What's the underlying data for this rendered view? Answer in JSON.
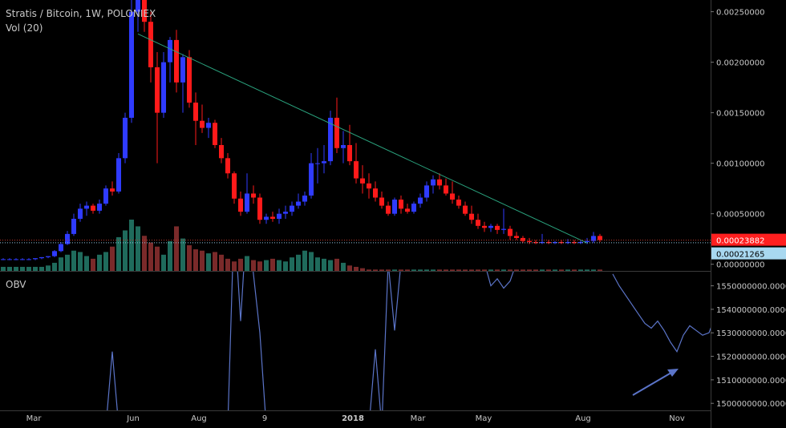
{
  "header": {
    "title": "Stratis / Bitcoin, 1W, POLONIEX",
    "vol_label": "Vol (20)"
  },
  "obv_label": "OBV",
  "colors": {
    "background": "#000000",
    "up_candle": "#2f3bff",
    "down_candle": "#ff1a1a",
    "volume_up": "#1f6b5c",
    "volume_down": "#7a2a2a",
    "trendline": "#2aa37e",
    "obv_line": "#5b74c8",
    "arrow": "#5b74c8",
    "price_tag_red": "#ff1f1f",
    "price_tag_blue": "#a8d8f0",
    "axis_text": "#c8c8c8"
  },
  "chart_data": [
    {
      "type": "candlestick",
      "title": "Stratis / Bitcoin, 1W, POLONIEX",
      "x_ticks": [
        "Mar",
        "Jun",
        "Aug",
        "9",
        "2018",
        "Mar",
        "May",
        "Aug",
        "Nov"
      ],
      "x_tick_bold": "2018",
      "y_ticks": [
        "0.00250000",
        "0.00200000",
        "0.00150000",
        "0.00100000",
        "0.00050000",
        "0.00000000"
      ],
      "ylim": [
        -5e-05,
        0.0026
      ],
      "last_price_tag": "0.00023882",
      "second_price_tag": "0.00021265",
      "ohlc": [
        [
          5e-05,
          6e-05,
          4e-05,
          5e-05
        ],
        [
          5e-05,
          6e-05,
          4e-05,
          5e-05
        ],
        [
          5e-05,
          6e-05,
          4e-05,
          5e-05
        ],
        [
          5e-05,
          6e-05,
          4e-05,
          5e-05
        ],
        [
          5e-05,
          6e-05,
          4e-05,
          5e-05
        ],
        [
          5e-05,
          6e-05,
          4e-05,
          6e-05
        ],
        [
          6e-05,
          7e-05,
          5e-05,
          7e-05
        ],
        [
          7e-05,
          8e-05,
          6e-05,
          8e-05
        ],
        [
          8e-05,
          0.00014,
          7e-05,
          0.00013
        ],
        [
          0.00013,
          0.00022,
          0.00012,
          0.0002
        ],
        [
          0.0002,
          0.00033,
          0.00019,
          0.0003
        ],
        [
          0.0003,
          0.0005,
          0.00028,
          0.00045
        ],
        [
          0.00045,
          0.0006,
          0.00042,
          0.00055
        ],
        [
          0.00055,
          0.00062,
          0.00048,
          0.00058
        ],
        [
          0.00058,
          0.0006,
          0.0005,
          0.00053
        ],
        [
          0.00053,
          0.00064,
          0.0005,
          0.0006
        ],
        [
          0.0006,
          0.00078,
          0.00058,
          0.00075
        ],
        [
          0.00075,
          0.00082,
          0.00068,
          0.00072
        ],
        [
          0.00072,
          0.0011,
          0.0007,
          0.00105
        ],
        [
          0.00105,
          0.0015,
          0.001,
          0.00145
        ],
        [
          0.00145,
          0.00265,
          0.0014,
          0.0025
        ],
        [
          0.0025,
          0.0027,
          0.0023,
          0.00262
        ],
        [
          0.00262,
          0.00268,
          0.0023,
          0.0024
        ],
        [
          0.0024,
          0.0025,
          0.0018,
          0.00195
        ],
        [
          0.00195,
          0.0021,
          0.001,
          0.0015
        ],
        [
          0.0015,
          0.0021,
          0.00145,
          0.002
        ],
        [
          0.002,
          0.00225,
          0.0018,
          0.00222
        ],
        [
          0.00222,
          0.00232,
          0.0017,
          0.0018
        ],
        [
          0.0018,
          0.00208,
          0.0015,
          0.00205
        ],
        [
          0.00205,
          0.00212,
          0.00155,
          0.0016
        ],
        [
          0.0016,
          0.0017,
          0.00118,
          0.00142
        ],
        [
          0.00142,
          0.00158,
          0.0013,
          0.00135
        ],
        [
          0.00135,
          0.00145,
          0.00125,
          0.0014
        ],
        [
          0.0014,
          0.00143,
          0.00115,
          0.00118
        ],
        [
          0.00118,
          0.00125,
          0.001,
          0.00105
        ],
        [
          0.00105,
          0.0011,
          0.00085,
          0.0009
        ],
        [
          0.0009,
          0.00092,
          0.0006,
          0.00065
        ],
        [
          0.00065,
          0.00072,
          0.00048,
          0.00052
        ],
        [
          0.00052,
          0.0009,
          0.0005,
          0.0007
        ],
        [
          0.0007,
          0.00078,
          0.0006,
          0.00066
        ],
        [
          0.00066,
          0.0007,
          0.0004,
          0.00044
        ],
        [
          0.00044,
          0.0005,
          0.0004,
          0.00047
        ],
        [
          0.00047,
          0.00052,
          0.00042,
          0.00045
        ],
        [
          0.00045,
          0.00055,
          0.0004,
          0.0005
        ],
        [
          0.0005,
          0.00058,
          0.00045,
          0.00052
        ],
        [
          0.00052,
          0.00062,
          0.00048,
          0.00058
        ],
        [
          0.00058,
          0.0007,
          0.00055,
          0.00062
        ],
        [
          0.00062,
          0.00072,
          0.00058,
          0.00068
        ],
        [
          0.00068,
          0.0011,
          0.00065,
          0.001
        ],
        [
          0.001,
          0.00115,
          0.0008,
          0.001
        ],
        [
          0.001,
          0.00118,
          0.0009,
          0.00102
        ],
        [
          0.00102,
          0.00152,
          0.00098,
          0.00145
        ],
        [
          0.00145,
          0.00165,
          0.0011,
          0.00115
        ],
        [
          0.00115,
          0.00132,
          0.001,
          0.00118
        ],
        [
          0.00118,
          0.00138,
          0.00098,
          0.00102
        ],
        [
          0.00102,
          0.0012,
          0.0008,
          0.00085
        ],
        [
          0.00085,
          0.00098,
          0.0007,
          0.0008
        ],
        [
          0.0008,
          0.0009,
          0.00065,
          0.00075
        ],
        [
          0.00075,
          0.00082,
          0.00062,
          0.00066
        ],
        [
          0.00066,
          0.00072,
          0.00055,
          0.00058
        ],
        [
          0.00058,
          0.00062,
          0.00048,
          0.0005
        ],
        [
          0.0005,
          0.00066,
          0.00048,
          0.00064
        ],
        [
          0.00064,
          0.00068,
          0.0005,
          0.00055
        ],
        [
          0.00055,
          0.0006,
          0.0005,
          0.00052
        ],
        [
          0.00052,
          0.00062,
          0.0005,
          0.0006
        ],
        [
          0.0006,
          0.0007,
          0.00056,
          0.00066
        ],
        [
          0.00066,
          0.00082,
          0.00062,
          0.00078
        ],
        [
          0.00078,
          0.00088,
          0.0007,
          0.00084
        ],
        [
          0.00084,
          0.0009,
          0.00074,
          0.00078
        ],
        [
          0.00078,
          0.00085,
          0.00068,
          0.0007
        ],
        [
          0.0007,
          0.00082,
          0.0006,
          0.00064
        ],
        [
          0.00064,
          0.00068,
          0.00055,
          0.00058
        ],
        [
          0.00058,
          0.00062,
          0.00048,
          0.0005
        ],
        [
          0.0005,
          0.00058,
          0.0004,
          0.00044
        ],
        [
          0.00044,
          0.0005,
          0.00035,
          0.00038
        ],
        [
          0.00038,
          0.00042,
          0.00032,
          0.00036
        ],
        [
          0.00036,
          0.0004,
          0.00032,
          0.00038
        ],
        [
          0.00038,
          0.0004,
          0.0003,
          0.00034
        ],
        [
          0.00034,
          0.00055,
          0.0003,
          0.00035
        ],
        [
          0.00035,
          0.00038,
          0.00024,
          0.00028
        ],
        [
          0.00028,
          0.00032,
          0.00024,
          0.00026
        ],
        [
          0.00026,
          0.00028,
          0.00021,
          0.00023
        ],
        [
          0.00023,
          0.00026,
          0.0002,
          0.00022
        ],
        [
          0.00022,
          0.00024,
          0.0002,
          0.00021
        ],
        [
          0.00021,
          0.0003,
          0.0002,
          0.00022
        ],
        [
          0.00022,
          0.00024,
          0.0002,
          0.00021
        ],
        [
          0.00021,
          0.00023,
          0.0002,
          0.00022
        ],
        [
          0.00022,
          0.00024,
          0.0002,
          0.00021
        ],
        [
          0.00021,
          0.00025,
          0.0002,
          0.00022
        ],
        [
          0.00022,
          0.00024,
          0.0002,
          0.00021
        ],
        [
          0.00021,
          0.00024,
          0.0002,
          0.00022
        ],
        [
          0.00022,
          0.00026,
          0.0002,
          0.00023
        ],
        [
          0.00023,
          0.00032,
          0.00021,
          0.00028
        ],
        [
          0.00028,
          0.0003,
          0.00022,
          0.00024
        ]
      ],
      "trendline": [
        [
          21,
          0.00228
        ],
        [
          91,
          0.00021
        ]
      ]
    },
    {
      "type": "bar",
      "name": "Vol (20)",
      "values": [
        3,
        3,
        3,
        3,
        3,
        3,
        3,
        4,
        6,
        10,
        12,
        15,
        14,
        11,
        9,
        12,
        14,
        18,
        25,
        30,
        38,
        33,
        26,
        21,
        18,
        12,
        22,
        33,
        24,
        19,
        16,
        15,
        13,
        14,
        12,
        9,
        7,
        9,
        11,
        8,
        7,
        8,
        9,
        8,
        7,
        10,
        12,
        15,
        14,
        10,
        9,
        8,
        9,
        6,
        4,
        3,
        2,
        1,
        1,
        1,
        1,
        1,
        1,
        1,
        1,
        1,
        1,
        1,
        1,
        1,
        1,
        1,
        1,
        1,
        1,
        1,
        1,
        1,
        1,
        1,
        1,
        1,
        1,
        1,
        1,
        1,
        1,
        1,
        1,
        1,
        1,
        1,
        1,
        1
      ]
    },
    {
      "type": "line",
      "name": "OBV",
      "y_ticks": [
        "1550000000.0000",
        "1540000000.0000",
        "1530000000.0000",
        "1520000000.0000",
        "1510000000.0000",
        "1500000000.0000"
      ],
      "ylim": [
        1497000000,
        1556000000
      ],
      "points": [
        [
          16,
          1490000000
        ],
        [
          17,
          1522000000
        ],
        [
          18,
          1490000000
        ],
        [
          35,
          1490000000
        ],
        [
          36,
          1580000000
        ],
        [
          37,
          1535000000
        ],
        [
          38,
          1580000000
        ],
        [
          40,
          1530000000
        ],
        [
          41,
          1490000000
        ],
        [
          57,
          1490000000
        ],
        [
          58,
          1523000000
        ],
        [
          59,
          1490000000
        ],
        [
          60,
          1560000000
        ],
        [
          61,
          1531000000
        ],
        [
          62,
          1560000000
        ],
        [
          75,
          1560000000
        ],
        [
          76,
          1550000000
        ],
        [
          77,
          1553000000
        ],
        [
          78,
          1549000000
        ],
        [
          79,
          1552000000
        ],
        [
          80,
          1560000000
        ],
        [
          95,
          1555000000
        ],
        [
          96,
          1550000000
        ],
        [
          97,
          1546000000
        ],
        [
          98,
          1542000000
        ],
        [
          99,
          1538000000
        ],
        [
          100,
          1534000000
        ],
        [
          101,
          1532000000
        ],
        [
          102,
          1535000000
        ],
        [
          103,
          1531000000
        ],
        [
          104,
          1526000000
        ],
        [
          105,
          1522000000
        ],
        [
          106,
          1529000000
        ],
        [
          107,
          1533000000
        ],
        [
          108,
          1531000000
        ],
        [
          109,
          1529000000
        ],
        [
          110,
          1530000000
        ],
        [
          111,
          1537000000
        ],
        [
          112,
          1536000000
        ]
      ]
    }
  ]
}
